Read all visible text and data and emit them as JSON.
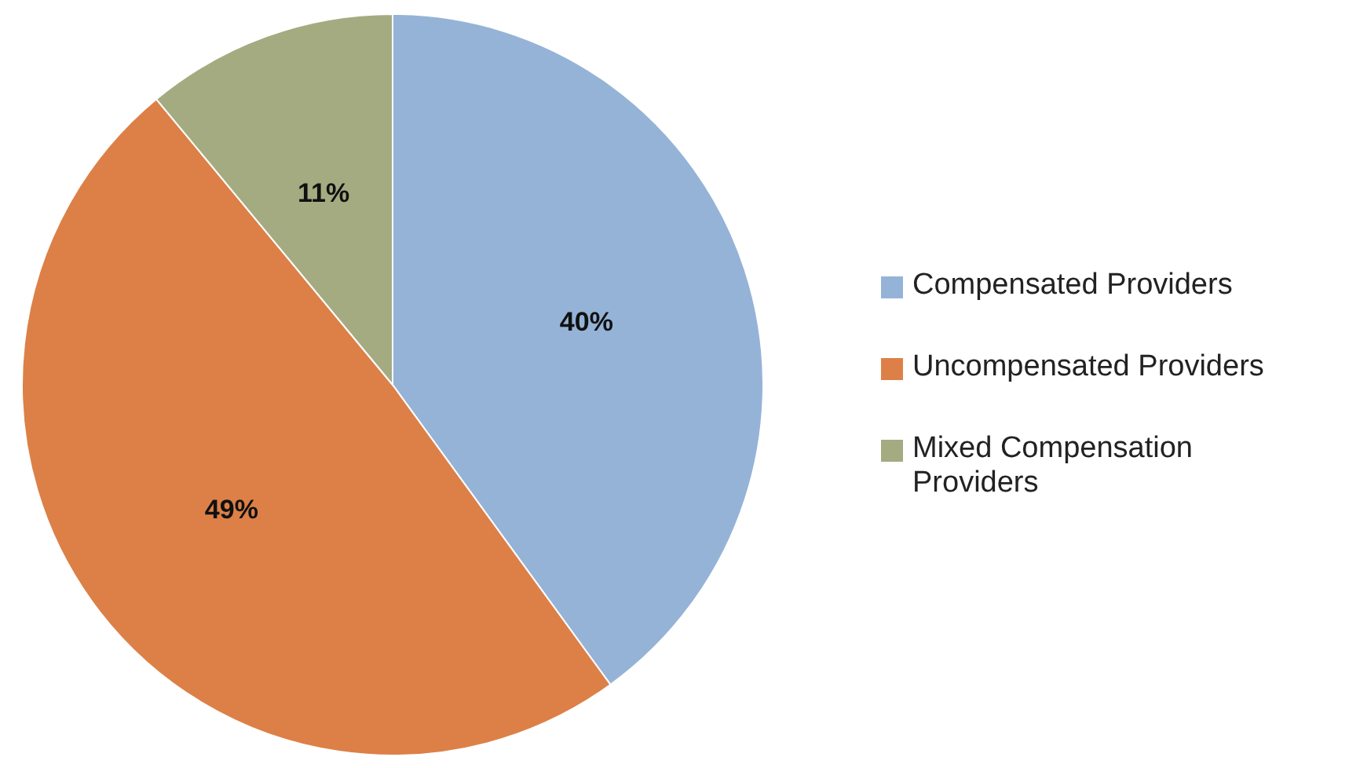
{
  "chart_data": {
    "type": "pie",
    "categories": [
      "Compensated Providers",
      "Uncompensated Providers",
      "Mixed Compensation Providers"
    ],
    "values": [
      40,
      49,
      11
    ],
    "colors": [
      "#95b3d7",
      "#dd8047",
      "#a5ab81"
    ],
    "value_labels": [
      "40%",
      "49%",
      "11%"
    ],
    "legend": "right"
  }
}
